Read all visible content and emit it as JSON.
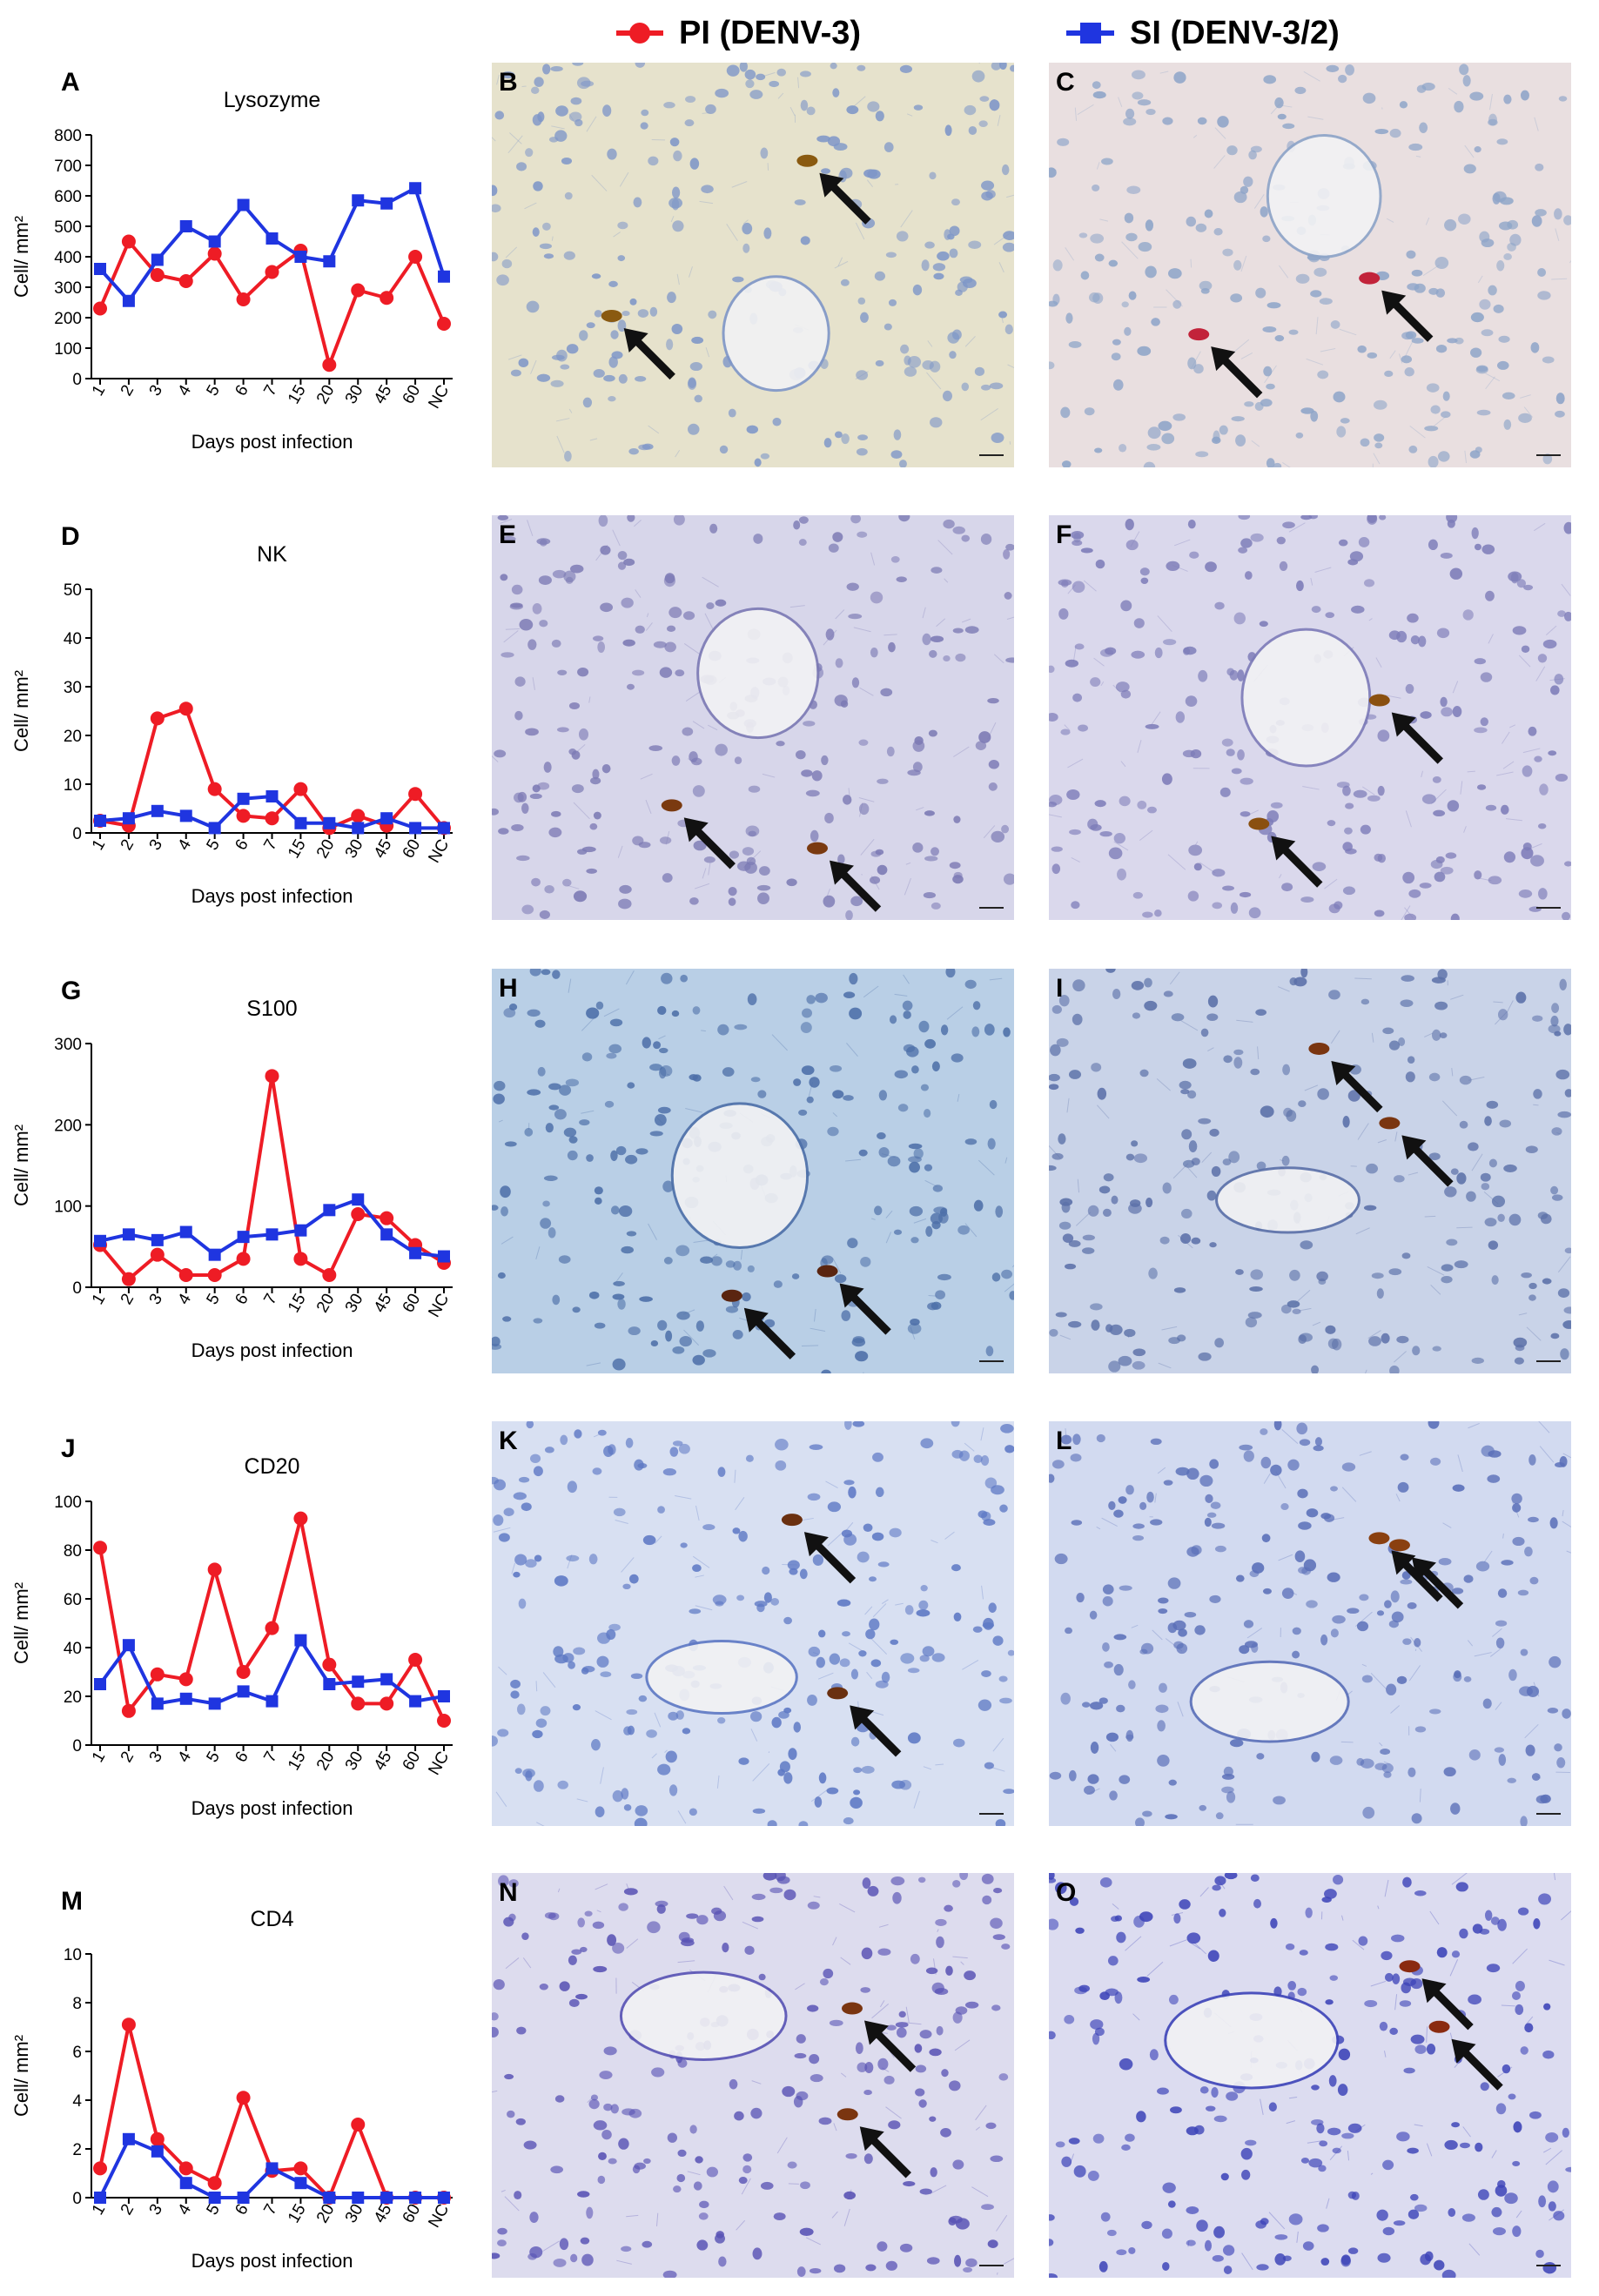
{
  "legend": {
    "pi_label": "PI (DENV-3)",
    "si_label": "SI (DENV-3/2)",
    "pi_color": "#ee1c25",
    "si_color": "#1f35e0"
  },
  "x_categories": [
    "1",
    "2",
    "3",
    "4",
    "5",
    "6",
    "7",
    "15",
    "20",
    "30",
    "45",
    "60",
    "NC"
  ],
  "xlabel": "Days post infection",
  "ylabel": "Cell/ mm²",
  "chart_data": [
    {
      "type": "line",
      "letter": "A",
      "title": "Lysozyme",
      "ylim": [
        0,
        800
      ],
      "yticks": [
        0,
        100,
        200,
        300,
        400,
        500,
        600,
        700,
        800
      ],
      "series": [
        {
          "name": "PI (DENV-3)",
          "values": [
            230,
            450,
            340,
            320,
            410,
            260,
            350,
            420,
            45,
            290,
            265,
            400,
            180
          ]
        },
        {
          "name": "SI (DENV-3/2)",
          "values": [
            360,
            255,
            390,
            500,
            450,
            570,
            460,
            400,
            385,
            585,
            575,
            625,
            335
          ]
        }
      ]
    },
    {
      "type": "line",
      "letter": "D",
      "title": "NK",
      "ylim": [
        0,
        50
      ],
      "yticks": [
        0,
        10,
        20,
        30,
        40,
        50
      ],
      "series": [
        {
          "name": "PI (DENV-3)",
          "values": [
            2.5,
            1.5,
            23.5,
            25.5,
            9,
            3.5,
            3,
            9,
            1,
            3.5,
            1.5,
            8,
            1
          ]
        },
        {
          "name": "SI (DENV-3/2)",
          "values": [
            2.5,
            3,
            4.5,
            3.5,
            1,
            7,
            7.5,
            2,
            2,
            1,
            3,
            1,
            1
          ]
        }
      ]
    },
    {
      "type": "line",
      "letter": "G",
      "title": "S100",
      "ylim": [
        0,
        300
      ],
      "yticks": [
        0,
        100,
        200,
        300
      ],
      "series": [
        {
          "name": "PI (DENV-3)",
          "values": [
            52,
            10,
            40,
            15,
            15,
            35,
            260,
            35,
            15,
            90,
            85,
            52,
            30
          ]
        },
        {
          "name": "SI (DENV-3/2)",
          "values": [
            57,
            65,
            58,
            68,
            40,
            62,
            65,
            70,
            95,
            108,
            65,
            42,
            38
          ]
        }
      ]
    },
    {
      "type": "line",
      "letter": "J",
      "title": "CD20",
      "ylim": [
        0,
        100
      ],
      "yticks": [
        0,
        20,
        40,
        60,
        80,
        100
      ],
      "series": [
        {
          "name": "PI (DENV-3)",
          "values": [
            81,
            14,
            29,
            27,
            72,
            30,
            48,
            93,
            33,
            17,
            17,
            35,
            10
          ]
        },
        {
          "name": "SI (DENV-3/2)",
          "values": [
            25,
            41,
            17,
            19,
            17,
            22,
            18,
            43,
            25,
            26,
            27,
            18,
            20
          ]
        }
      ]
    },
    {
      "type": "line",
      "letter": "M",
      "title": "CD4",
      "ylim": [
        0,
        10
      ],
      "yticks": [
        0,
        2,
        4,
        6,
        8,
        10
      ],
      "series": [
        {
          "name": "PI (DENV-3)",
          "values": [
            1.2,
            7.1,
            2.4,
            1.2,
            0.6,
            4.1,
            1.1,
            1.2,
            0,
            3,
            0,
            0,
            0
          ]
        },
        {
          "name": "SI (DENV-3/2)",
          "values": [
            0,
            2.4,
            1.9,
            0.6,
            0,
            0,
            1.2,
            0.6,
            0,
            0,
            0,
            0,
            0
          ]
        }
      ]
    }
  ],
  "micrographs": [
    {
      "letter": "B",
      "bg": "#e6e2cc",
      "cell": "#7e96c8",
      "stain": "#8a5a10"
    },
    {
      "letter": "C",
      "bg": "#e9dfe0",
      "cell": "#8da4c8",
      "stain": "#c2233a"
    },
    {
      "letter": "E",
      "bg": "#d7d6ea",
      "cell": "#7c7ab4",
      "stain": "#7a3a10"
    },
    {
      "letter": "F",
      "bg": "#dad8ec",
      "cell": "#7d7cb8",
      "stain": "#8a5010"
    },
    {
      "letter": "H",
      "bg": "#b9cfe6",
      "cell": "#4d6fa8",
      "stain": "#5a2510"
    },
    {
      "letter": "I",
      "bg": "#c9d3e8",
      "cell": "#5b70a8",
      "stain": "#7a3510"
    },
    {
      "letter": "K",
      "bg": "#d8e0f2",
      "cell": "#5d78c4",
      "stain": "#6a3010"
    },
    {
      "letter": "L",
      "bg": "#d2daf0",
      "cell": "#5a6fb8",
      "stain": "#8a4010"
    },
    {
      "letter": "N",
      "bg": "#dddcee",
      "cell": "#5852b4",
      "stain": "#7a3510"
    },
    {
      "letter": "O",
      "bg": "#dcdcf0",
      "cell": "#3d44b8",
      "stain": "#8a2a10"
    }
  ]
}
